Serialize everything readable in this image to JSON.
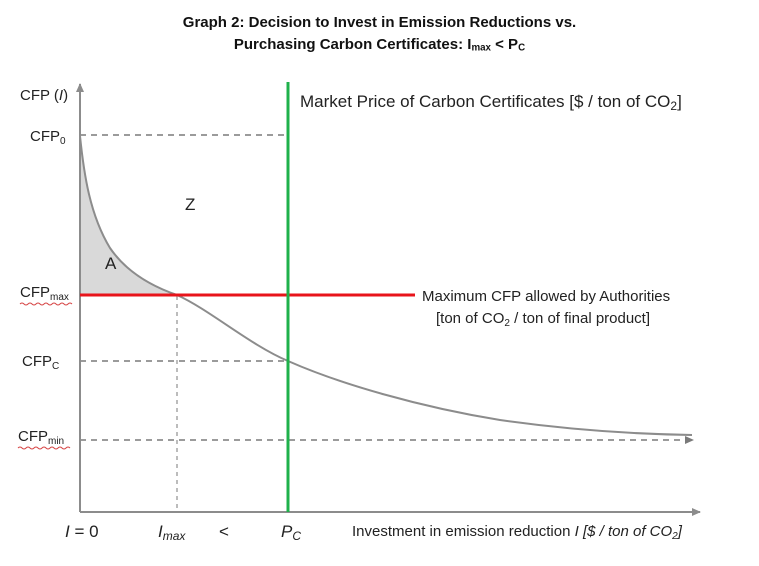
{
  "title": {
    "line1": "Graph 2: Decision to Invest in Emission Reductions vs.",
    "line2_prefix": "Purchasing Carbon Certificates: I",
    "line2_sub1": "max",
    "line2_mid": " < P",
    "line2_sub2": "C"
  },
  "y_axis": {
    "label_prefix": "CFP (",
    "label_var": "I",
    "label_suffix": ")",
    "ticks": [
      {
        "base": "CFP",
        "sub": "0"
      },
      {
        "base": "CFP",
        "sub": "max"
      },
      {
        "base": "CFP",
        "sub": "C"
      },
      {
        "base": "CFP",
        "sub": "min"
      }
    ]
  },
  "x_axis": {
    "tick_i0_var": "I",
    "tick_i0_rest": " = 0",
    "tick_imax_var": "I",
    "tick_imax_sub": "max",
    "less_than": "<",
    "tick_pc_var": "P",
    "tick_pc_sub": "C",
    "label_main": "Investment in emission reduction ",
    "label_var": "I",
    "label_units_prefix": " [$ / ton of CO",
    "label_units_sub": "2",
    "label_units_suffix": "]"
  },
  "annotations": {
    "market_price_prefix": "Market Price of Carbon Certificates [$ / ton of CO",
    "market_price_sub": "2",
    "market_price_suffix": "]",
    "max_cfp_line1": "Maximum CFP allowed by Authorities",
    "max_cfp_line2_prefix": "[ton of CO",
    "max_cfp_line2_sub": "2",
    "max_cfp_line2_suffix": " / ton of final product]",
    "region_z": "Z",
    "region_a": "A"
  },
  "colors": {
    "curve": "#8c8c8c",
    "axis": "#8c8c8c",
    "dashed": "#7a7a7a",
    "red_line": "#e8141b",
    "green_line": "#1fb14b",
    "shade": "#d9d9d9",
    "squiggle": "#d64545"
  }
}
